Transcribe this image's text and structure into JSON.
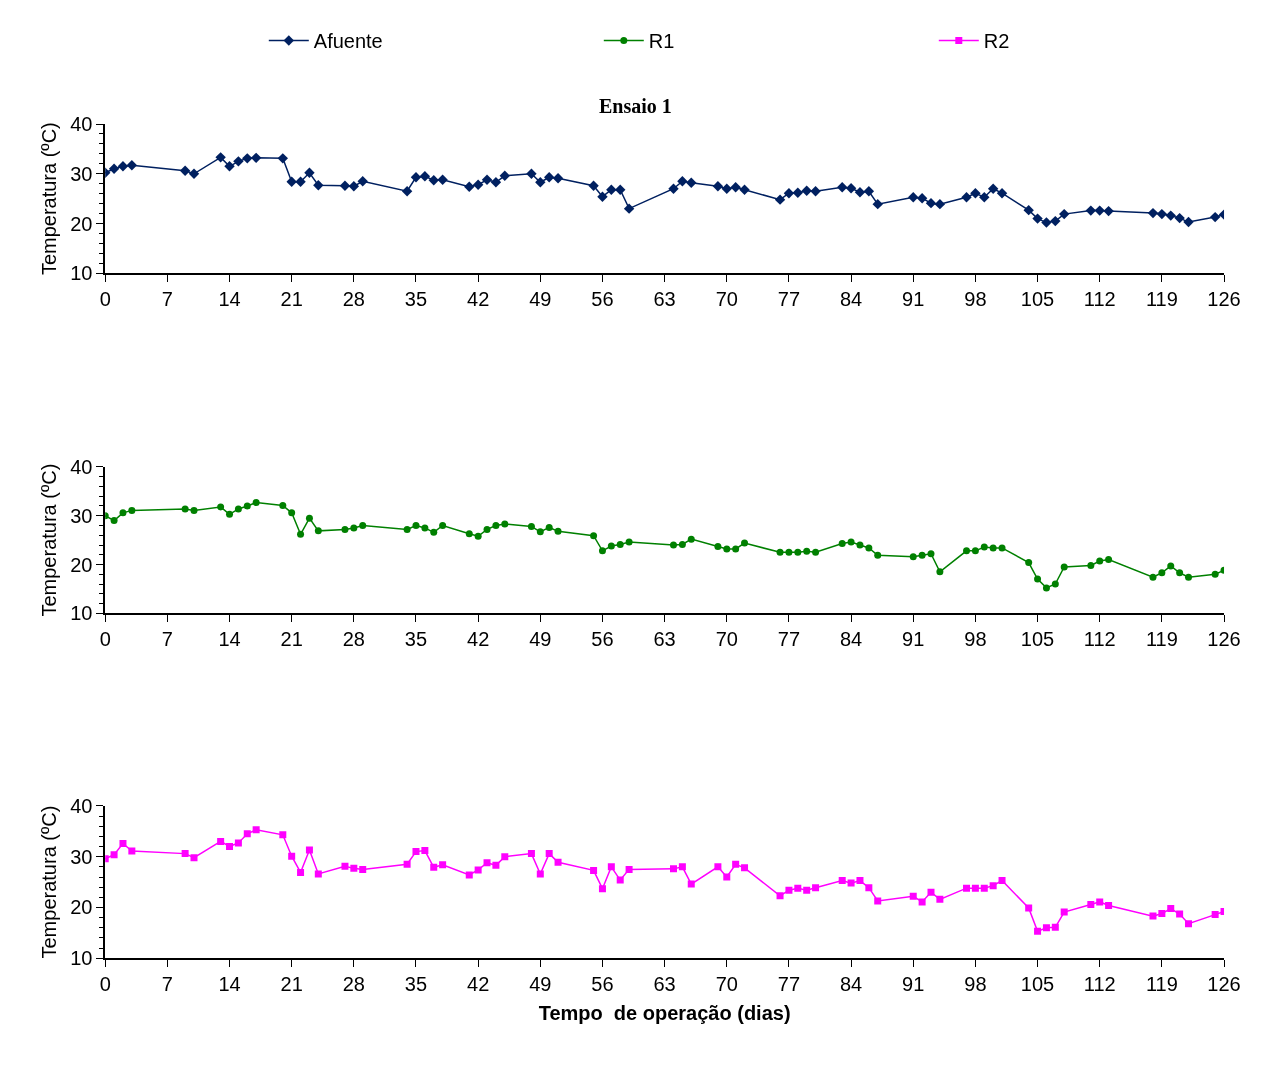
{
  "chart_data": [
    {
      "type": "line",
      "title": "Ensaio 1",
      "ylabel": "Temperatura (ºC)",
      "marker": "diamond",
      "legend": "top",
      "x": [
        0,
        1,
        2,
        3,
        9,
        10,
        13,
        14,
        15,
        16,
        17,
        20,
        21,
        22,
        23,
        24,
        27,
        28,
        29,
        34,
        35,
        36,
        37,
        38,
        41,
        42,
        43,
        44,
        45,
        48,
        49,
        50,
        51,
        55,
        56,
        57,
        58,
        59,
        64,
        65,
        66,
        69,
        70,
        71,
        72,
        76,
        77,
        78,
        79,
        80,
        83,
        84,
        85,
        86,
        87,
        91,
        92,
        93,
        94,
        97,
        98,
        99,
        100,
        101,
        104,
        105,
        106,
        107,
        108,
        111,
        112,
        113,
        118,
        119,
        120,
        121,
        122,
        125,
        126
      ],
      "xlim": [
        0,
        126
      ],
      "xticks": [
        0,
        7,
        14,
        21,
        28,
        35,
        42,
        49,
        56,
        63,
        70,
        77,
        84,
        91,
        98,
        105,
        112,
        119,
        126
      ],
      "ylim": [
        10,
        40
      ],
      "yticks": [
        10,
        20,
        30,
        40
      ],
      "series": [
        {
          "name": "Afuente",
          "color": "#002060",
          "values": [
            30.2,
            31.0,
            31.5,
            31.7,
            30.6,
            30.0,
            33.3,
            31.5,
            32.5,
            33.1,
            33.2,
            33.1,
            28.4,
            28.4,
            30.2,
            27.7,
            27.6,
            27.5,
            28.5,
            26.5,
            29.3,
            29.5,
            28.7,
            28.8,
            27.4,
            27.8,
            28.8,
            28.3,
            29.6,
            30.0,
            28.3,
            29.3,
            29.1,
            27.6,
            25.4,
            26.8,
            26.8,
            23.0,
            27.0,
            28.5,
            28.2,
            27.5,
            27.0,
            27.3,
            26.8,
            24.8,
            26.1,
            26.2,
            26.6,
            26.5,
            27.3,
            27.1,
            26.3,
            26.5,
            23.9,
            25.3,
            25.1,
            24.1,
            23.9,
            25.3,
            26.1,
            25.3,
            27.0,
            26.1,
            22.7,
            21.0,
            20.2,
            20.5,
            21.9,
            22.6,
            22.6,
            22.5,
            22.1,
            21.9,
            21.6,
            21.1,
            20.3,
            21.3,
            21.8
          ]
        }
      ]
    },
    {
      "type": "line",
      "ylabel": "Temperatura (ºC)",
      "marker": "circle",
      "legend": "top",
      "x": [
        0,
        1,
        2,
        3,
        9,
        10,
        13,
        14,
        15,
        16,
        17,
        20,
        21,
        22,
        23,
        24,
        27,
        28,
        29,
        34,
        35,
        36,
        37,
        38,
        41,
        42,
        43,
        44,
        45,
        48,
        49,
        50,
        51,
        55,
        56,
        57,
        58,
        59,
        64,
        65,
        66,
        69,
        70,
        71,
        72,
        76,
        77,
        78,
        79,
        80,
        83,
        84,
        85,
        86,
        87,
        91,
        92,
        93,
        94,
        97,
        98,
        99,
        100,
        101,
        104,
        105,
        106,
        107,
        108,
        111,
        112,
        113,
        118,
        119,
        120,
        121,
        122,
        125,
        126
      ],
      "xlim": [
        0,
        126
      ],
      "xticks": [
        0,
        7,
        14,
        21,
        28,
        35,
        42,
        49,
        56,
        63,
        70,
        77,
        84,
        91,
        98,
        105,
        112,
        119,
        126
      ],
      "ylim": [
        10,
        40
      ],
      "yticks": [
        10,
        20,
        30,
        40
      ],
      "series": [
        {
          "name": "R1",
          "color": "#008000",
          "values": [
            30.0,
            29.0,
            30.6,
            31.1,
            31.4,
            31.1,
            31.8,
            30.3,
            31.4,
            32.0,
            32.7,
            32.1,
            30.6,
            26.2,
            29.5,
            26.9,
            27.2,
            27.5,
            28.0,
            27.2,
            28.0,
            27.5,
            26.6,
            28.0,
            26.3,
            25.8,
            27.2,
            28.0,
            28.3,
            27.8,
            26.7,
            27.6,
            26.8,
            25.9,
            22.8,
            23.8,
            24.1,
            24.6,
            24.0,
            24.1,
            25.2,
            23.7,
            23.2,
            23.2,
            24.4,
            22.5,
            22.5,
            22.5,
            22.7,
            22.5,
            24.3,
            24.6,
            24.0,
            23.4,
            21.9,
            21.6,
            21.9,
            22.2,
            18.5,
            22.8,
            22.8,
            23.6,
            23.4,
            23.4,
            20.4,
            17.0,
            15.2,
            16.0,
            19.5,
            19.8,
            20.7,
            21.0,
            17.4,
            18.3,
            19.7,
            18.3,
            17.4,
            18.0,
            18.8
          ]
        }
      ]
    },
    {
      "type": "line",
      "ylabel": "Temperatura (ºC)",
      "xlabel": "Tempo  de operação (dias)",
      "marker": "square",
      "legend": "top",
      "x": [
        0,
        1,
        2,
        3,
        9,
        10,
        13,
        14,
        15,
        16,
        17,
        20,
        21,
        22,
        23,
        24,
        27,
        28,
        29,
        34,
        35,
        36,
        37,
        38,
        41,
        42,
        43,
        44,
        45,
        48,
        49,
        50,
        51,
        55,
        56,
        57,
        58,
        59,
        64,
        65,
        66,
        69,
        70,
        71,
        72,
        76,
        77,
        78,
        79,
        80,
        83,
        84,
        85,
        86,
        87,
        91,
        92,
        93,
        94,
        97,
        98,
        99,
        100,
        101,
        104,
        105,
        106,
        107,
        108,
        111,
        112,
        113,
        118,
        119,
        120,
        121,
        122,
        125,
        126
      ],
      "xlim": [
        0,
        126
      ],
      "xticks": [
        0,
        7,
        14,
        21,
        28,
        35,
        42,
        49,
        56,
        63,
        70,
        77,
        84,
        91,
        98,
        105,
        112,
        119,
        126
      ],
      "ylim": [
        10,
        40
      ],
      "yticks": [
        10,
        20,
        30,
        40
      ],
      "series": [
        {
          "name": "R2",
          "color": "#ff00ff",
          "values": [
            29.6,
            30.4,
            32.6,
            31.1,
            30.6,
            29.8,
            33.0,
            32.0,
            32.7,
            34.5,
            35.3,
            34.3,
            30.1,
            26.9,
            31.3,
            26.6,
            28.1,
            27.7,
            27.5,
            28.5,
            31.0,
            31.2,
            27.9,
            28.4,
            26.4,
            27.4,
            28.8,
            28.3,
            30.0,
            30.6,
            26.6,
            30.6,
            28.9,
            27.3,
            23.7,
            28.0,
            25.4,
            27.5,
            27.6,
            28.0,
            24.6,
            28.0,
            26.0,
            28.5,
            27.8,
            22.3,
            23.4,
            23.8,
            23.4,
            23.9,
            25.3,
            24.8,
            25.3,
            23.9,
            21.3,
            22.2,
            21.1,
            23.0,
            21.6,
            23.8,
            23.8,
            23.8,
            24.3,
            25.3,
            19.9,
            15.3,
            16.0,
            16.1,
            19.1,
            20.6,
            21.1,
            20.4,
            18.3,
            18.8,
            19.8,
            18.7,
            16.8,
            18.6,
            19.2
          ]
        }
      ]
    }
  ]
}
